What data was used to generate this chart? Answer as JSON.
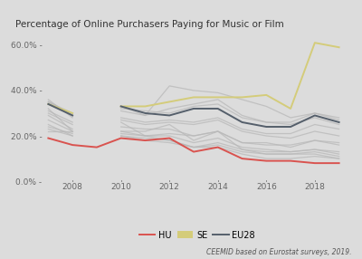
{
  "title": "Percentage of Online Purchasers Paying for Music or Film",
  "footnote": "CEEMID based on Eurostat surveys, 2019.",
  "years": [
    2007,
    2008,
    2009,
    2010,
    2011,
    2012,
    2013,
    2014,
    2015,
    2016,
    2017,
    2018,
    2019
  ],
  "HU": [
    0.19,
    0.16,
    0.15,
    0.19,
    0.18,
    0.19,
    0.13,
    0.15,
    0.1,
    0.09,
    0.09,
    0.08,
    0.08
  ],
  "SE": [
    0.34,
    0.3,
    null,
    0.33,
    0.33,
    0.35,
    0.37,
    0.37,
    0.37,
    0.38,
    0.32,
    0.61,
    0.59
  ],
  "EU28": [
    0.34,
    0.29,
    null,
    0.33,
    0.3,
    0.29,
    0.32,
    0.32,
    0.26,
    0.24,
    0.24,
    0.29,
    0.26
  ],
  "HU_color": "#d9534f",
  "SE_color": "#d4cc7a",
  "EU28_color": "#555f6b",
  "bg_color": "#dcdcdc",
  "plot_bg_color": "#dcdcdc",
  "gray_color": "#b8b8b8",
  "gray_alpha": 0.75,
  "other_countries": [
    [
      0.32,
      0.22,
      null,
      0.22,
      0.22,
      0.25,
      0.18,
      0.22,
      0.14,
      0.12,
      0.12,
      0.12,
      0.1
    ],
    [
      0.35,
      0.29,
      null,
      0.33,
      0.29,
      0.42,
      0.4,
      0.39,
      0.36,
      0.33,
      0.28,
      0.3,
      0.27
    ],
    [
      0.29,
      0.23,
      null,
      0.26,
      0.2,
      0.21,
      0.2,
      0.22,
      0.17,
      0.17,
      0.15,
      0.18,
      0.16
    ],
    [
      0.35,
      0.3,
      null,
      0.32,
      0.31,
      0.3,
      0.33,
      0.34,
      0.28,
      0.26,
      0.25,
      0.28,
      0.25
    ],
    [
      0.22,
      0.22,
      null,
      0.2,
      0.19,
      0.18,
      0.15,
      0.15,
      0.12,
      0.1,
      0.1,
      0.11,
      0.1
    ],
    [
      0.25,
      0.2,
      null,
      0.21,
      0.2,
      0.2,
      0.17,
      0.19,
      0.15,
      0.14,
      0.13,
      0.14,
      0.13
    ],
    [
      0.3,
      0.25,
      null,
      0.27,
      0.25,
      0.26,
      0.25,
      0.27,
      0.22,
      0.2,
      0.19,
      0.22,
      0.2
    ],
    [
      0.36,
      0.28,
      null,
      0.31,
      0.29,
      0.32,
      0.34,
      0.36,
      0.29,
      0.26,
      0.26,
      0.3,
      0.28
    ],
    [
      0.23,
      0.2,
      null,
      0.22,
      0.2,
      0.18,
      0.15,
      0.16,
      0.13,
      0.12,
      0.12,
      0.13,
      0.11
    ],
    [
      0.27,
      0.22,
      null,
      0.24,
      0.23,
      0.23,
      0.2,
      0.22,
      0.17,
      0.16,
      0.16,
      0.18,
      0.17
    ],
    [
      0.24,
      0.21,
      null,
      0.2,
      0.18,
      0.17,
      0.15,
      0.17,
      0.14,
      0.13,
      0.13,
      0.14,
      0.12
    ],
    [
      0.31,
      0.26,
      null,
      0.28,
      0.26,
      0.27,
      0.26,
      0.28,
      0.23,
      0.21,
      0.21,
      0.25,
      0.23
    ]
  ],
  "ylim": [
    0.0,
    0.65
  ],
  "yticks": [
    0.0,
    0.2,
    0.4,
    0.6
  ],
  "ytick_labels": [
    "0.0% -",
    "20.0% -",
    "40.0% -",
    "60.0% -"
  ],
  "xlim": [
    2006.8,
    2019.5
  ],
  "xticks": [
    2008,
    2010,
    2012,
    2014,
    2016,
    2018
  ]
}
